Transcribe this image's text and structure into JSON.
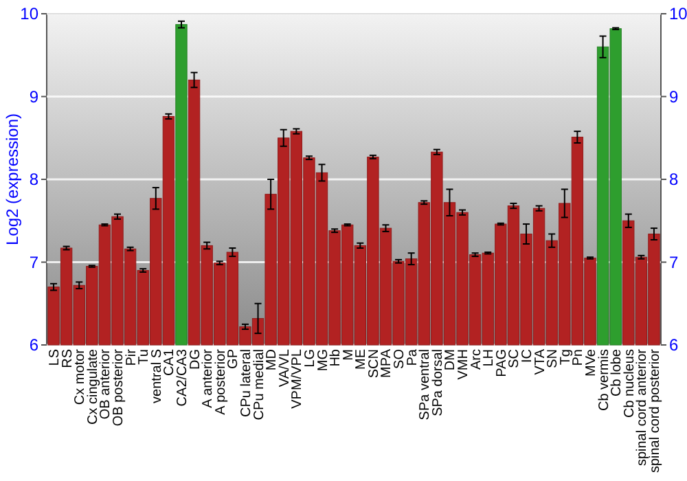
{
  "chart_data": {
    "type": "bar",
    "ylabel": "Log2 (expression)",
    "categories": [
      "LS",
      "RS",
      "Cx motor",
      "Cx cingulate",
      "OB anterior",
      "OB posterior",
      "Pir",
      "Tu",
      "ventral S",
      "CA1",
      "CA2/CA3",
      "DG",
      "A anterior",
      "A posterior",
      "GP",
      "CPu lateral",
      "CPu medial",
      "MD",
      "VA/VL",
      "VPM/VPL",
      "LG",
      "MG",
      "Hb",
      "M",
      "ME",
      "SCN",
      "MPA",
      "SO",
      "Pa",
      "SPa ventral",
      "SPa dorsal",
      "DM",
      "VMH",
      "Arc",
      "LH",
      "PAG",
      "SC",
      "IC",
      "VTA",
      "SN",
      "Tg",
      "Pn",
      "MVe",
      "Cb vermis",
      "Cb lobe",
      "Cb nucleus",
      "spinal cord anterior",
      "spinal cord posterior"
    ],
    "values": [
      6.7,
      7.17,
      6.72,
      6.95,
      7.45,
      7.55,
      7.16,
      6.9,
      7.77,
      8.76,
      9.87,
      9.2,
      7.2,
      6.99,
      7.12,
      6.22,
      6.32,
      7.82,
      8.5,
      8.58,
      8.26,
      8.08,
      7.38,
      7.45,
      7.2,
      8.27,
      7.41,
      7.01,
      7.04,
      7.72,
      8.33,
      7.72,
      7.6,
      7.09,
      7.11,
      7.46,
      7.68,
      7.34,
      7.65,
      7.26,
      7.71,
      8.51,
      7.05,
      9.6,
      9.82,
      7.5,
      7.06,
      7.34
    ],
    "errors": [
      0.04,
      0.02,
      0.04,
      0.01,
      0.01,
      0.03,
      0.02,
      0.02,
      0.13,
      0.03,
      0.04,
      0.09,
      0.04,
      0.02,
      0.05,
      0.03,
      0.18,
      0.18,
      0.1,
      0.03,
      0.02,
      0.1,
      0.02,
      0.01,
      0.03,
      0.02,
      0.04,
      0.02,
      0.07,
      0.02,
      0.03,
      0.16,
      0.03,
      0.02,
      0.01,
      0.01,
      0.03,
      0.12,
      0.03,
      0.08,
      0.17,
      0.07,
      0.01,
      0.13,
      0.01,
      0.08,
      0.02,
      0.07
    ],
    "colors": [
      "#b22222",
      "#b22222",
      "#b22222",
      "#b22222",
      "#b22222",
      "#b22222",
      "#b22222",
      "#b22222",
      "#b22222",
      "#b22222",
      "#2e9e2e",
      "#b22222",
      "#b22222",
      "#b22222",
      "#b22222",
      "#b22222",
      "#b22222",
      "#b22222",
      "#b22222",
      "#b22222",
      "#b22222",
      "#b22222",
      "#b22222",
      "#b22222",
      "#b22222",
      "#b22222",
      "#b22222",
      "#b22222",
      "#b22222",
      "#b22222",
      "#b22222",
      "#b22222",
      "#b22222",
      "#b22222",
      "#b22222",
      "#b22222",
      "#b22222",
      "#b22222",
      "#b22222",
      "#b22222",
      "#b22222",
      "#b22222",
      "#b22222",
      "#2e9e2e",
      "#2e9e2e",
      "#b22222",
      "#b22222",
      "#b22222"
    ],
    "ylim": [
      6,
      10
    ],
    "yticks": [
      6,
      7,
      8,
      9,
      10
    ],
    "y2lim": [
      6,
      10
    ],
    "y2ticks": [
      6,
      7,
      8,
      9,
      10
    ],
    "grid": "y"
  }
}
